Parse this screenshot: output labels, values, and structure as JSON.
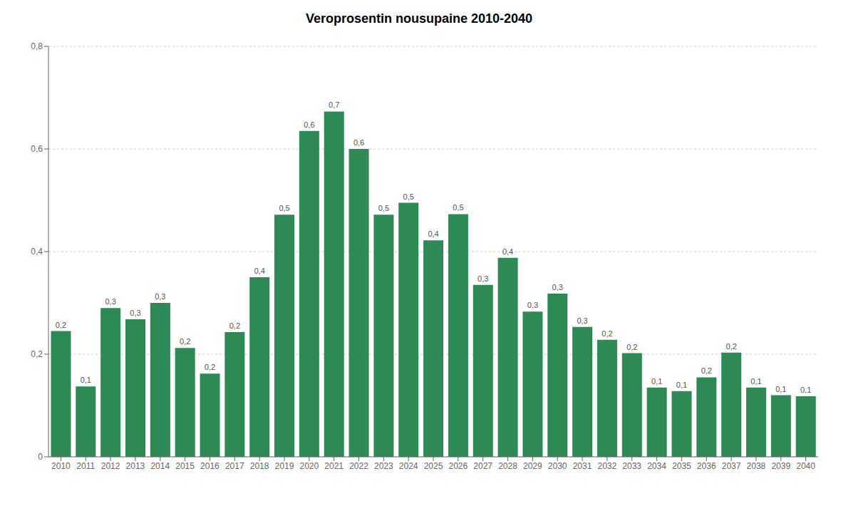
{
  "chart_data": {
    "type": "bar",
    "title": "Veroprosentin nousupaine 2010-2040",
    "categories": [
      "2010",
      "2011",
      "2012",
      "2013",
      "2014",
      "2015",
      "2016",
      "2017",
      "2018",
      "2019",
      "2020",
      "2021",
      "2022",
      "2023",
      "2024",
      "2025",
      "2026",
      "2027",
      "2028",
      "2029",
      "2030",
      "2031",
      "2032",
      "2033",
      "2034",
      "2035",
      "2036",
      "2037",
      "2038",
      "2039",
      "2040"
    ],
    "values": [
      0.245,
      0.137,
      0.29,
      0.268,
      0.3,
      0.212,
      0.162,
      0.243,
      0.35,
      0.472,
      0.635,
      0.673,
      0.6,
      0.472,
      0.495,
      0.422,
      0.473,
      0.335,
      0.388,
      0.283,
      0.318,
      0.253,
      0.228,
      0.202,
      0.135,
      0.128,
      0.155,
      0.203,
      0.135,
      0.12,
      0.118
    ],
    "value_labels": [
      "0,2",
      "0,1",
      "0,3",
      "0,3",
      "0,3",
      "0,2",
      "0,2",
      "0,2",
      "0,4",
      "0,5",
      "0,6",
      "0,7",
      "0,6",
      "0,5",
      "0,5",
      "0,4",
      "0,5",
      "0,3",
      "0,4",
      "0,3",
      "0,3",
      "0,3",
      "0,2",
      "0,2",
      "0,1",
      "0,1",
      "0,2",
      "0,2",
      "0,1",
      "0,1",
      "0,1"
    ],
    "data_labels": true,
    "color": "#2d8a55",
    "ylim": [
      0,
      0.8
    ],
    "yticks": [
      0,
      {
        "value": 0.2,
        "label": "0,2"
      },
      {
        "value": 0.4,
        "label": "0,4"
      },
      {
        "value": 0.6,
        "label": "0,6"
      },
      {
        "value": 0.8,
        "label": "0,8"
      }
    ],
    "grid": true
  }
}
